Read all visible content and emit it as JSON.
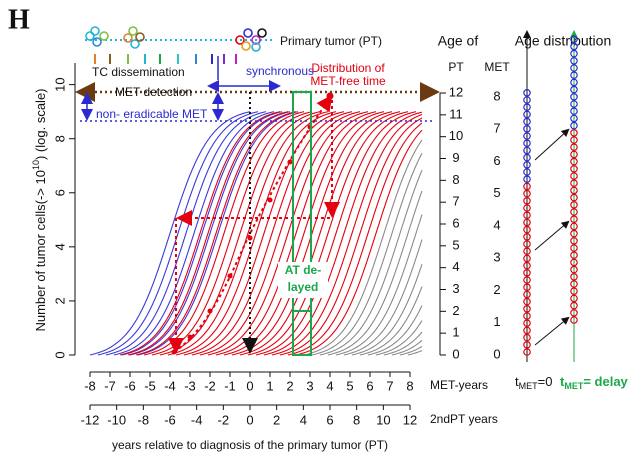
{
  "figure_label": "H",
  "chart_data": {
    "type": "line",
    "ylabel": {
      "text": "Number of tumor cells(-> 10",
      "sup": "10",
      "end": ") (log. scale)"
    },
    "ylim": [
      0,
      10.8
    ],
    "yticks": [
      0,
      2,
      4,
      6,
      8,
      10
    ],
    "curves": [
      {
        "color": "#3a3ad8",
        "starts": [
          -8,
          -7.6,
          -7.2,
          -6.8,
          -6.4,
          -6.0,
          -5.6
        ]
      },
      {
        "color": "#e4000f",
        "starts": [
          -6.5,
          -6.1,
          -5.7,
          -5.3,
          -4.9,
          -4.5,
          -4.1,
          -3.7,
          -3.3,
          -2.9,
          -2.5,
          -2.1,
          -1.7,
          -1.3,
          -0.9,
          -0.5,
          -0.1,
          0.3,
          0.7,
          1.1,
          1.5,
          1.9,
          2.3
        ]
      },
      {
        "color": "#8a8a8a",
        "starts": [
          2.7,
          3.1,
          3.5,
          3.9,
          4.3,
          4.7,
          5.1,
          5.5,
          5.9,
          6.3,
          6.7,
          7.1,
          7.5,
          7.9
        ]
      }
    ],
    "pt_axis": {
      "title": "Age of",
      "subtitle": "PT",
      "lim": [
        0,
        12
      ],
      "ticks": [
        0,
        1,
        2,
        3,
        4,
        5,
        6,
        7,
        8,
        9,
        10,
        11,
        12
      ]
    },
    "met_axis": {
      "title": "MET",
      "lim": [
        0,
        8
      ],
      "ticks": [
        0,
        1,
        2,
        3,
        4,
        5,
        6,
        7,
        8
      ]
    },
    "xaxis": {
      "label": "MET-years",
      "xlim": [
        -8,
        8
      ],
      "xticks": [
        -8,
        -7,
        -6,
        -5,
        -4,
        -3,
        -2,
        -1,
        0,
        1,
        2,
        3,
        4,
        5,
        6,
        7,
        8
      ]
    },
    "x2axis": {
      "label": "2ndPT years",
      "xlim": [
        -12,
        12
      ],
      "xticks": [
        -12,
        -10,
        -8,
        -6,
        -4,
        -2,
        0,
        2,
        4,
        6,
        8,
        10,
        12
      ]
    },
    "xlabel": "years relative to diagnosis of the primary tumor (PT)",
    "annotations": {
      "primary_tumor": "Primary tumor (PT)",
      "dissemination": "TC dissemination",
      "synchronous": "synchronous",
      "distribution": [
        "Distribution of",
        "MET-free time"
      ],
      "detection": "MET detection",
      "non_eradicable": "non- eradicable MET",
      "at_delayed": [
        "AT de-",
        "layed"
      ]
    },
    "age_distribution": {
      "title": "Age distribution",
      "columns": [
        {
          "red": 24,
          "blue": 13,
          "t": "t",
          "sub": "MET",
          "rest": "=0"
        },
        {
          "red": 27,
          "blue": 13,
          "t": "t",
          "sub": "MET",
          "rest": "= delay"
        }
      ]
    }
  }
}
